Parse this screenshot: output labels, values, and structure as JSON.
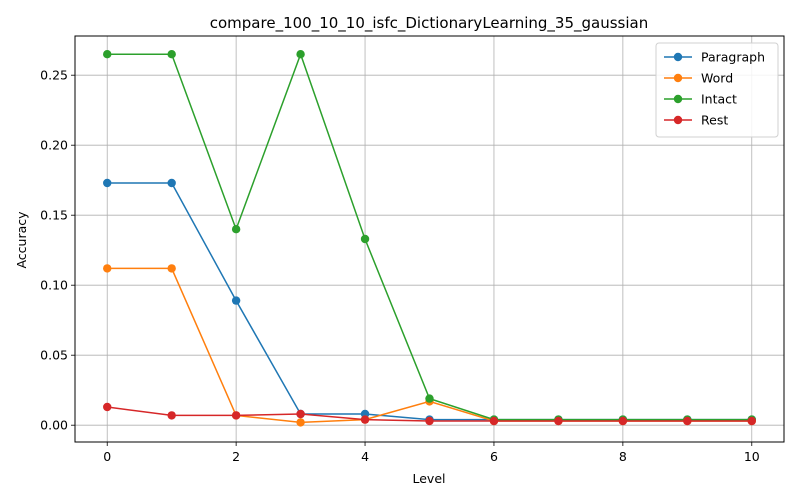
{
  "chart_data": {
    "type": "line",
    "title": "compare_100_10_10_isfc_DictionaryLearning_35_gaussian",
    "xlabel": "Level",
    "ylabel": "Accuracy",
    "xlim": [
      -0.5,
      10.5
    ],
    "ylim": [
      -0.012,
      0.278
    ],
    "xticks": [
      0,
      2,
      4,
      6,
      8,
      10
    ],
    "yticks": [
      0.0,
      0.05,
      0.1,
      0.15,
      0.2,
      0.25
    ],
    "ytick_labels": [
      "0.00",
      "0.05",
      "0.10",
      "0.15",
      "0.20",
      "0.25"
    ],
    "grid": true,
    "legend_position": "top-right",
    "x": [
      0,
      1,
      2,
      3,
      4,
      5,
      6,
      7,
      8,
      9,
      10
    ],
    "series": [
      {
        "name": "Paragraph",
        "color": "#1f77b4",
        "values": [
          0.173,
          0.173,
          0.089,
          0.008,
          0.008,
          0.004,
          0.004,
          0.004,
          0.004,
          0.004,
          0.004
        ]
      },
      {
        "name": "Word",
        "color": "#ff7f0e",
        "values": [
          0.112,
          0.112,
          0.007,
          0.002,
          0.004,
          0.017,
          0.003,
          0.003,
          0.003,
          0.003,
          0.003
        ]
      },
      {
        "name": "Intact",
        "color": "#2ca02c",
        "values": [
          0.265,
          0.265,
          0.14,
          0.265,
          0.133,
          0.019,
          0.004,
          0.004,
          0.004,
          0.004,
          0.004
        ]
      },
      {
        "name": "Rest",
        "color": "#d62728",
        "values": [
          0.013,
          0.007,
          0.007,
          0.008,
          0.004,
          0.003,
          0.003,
          0.003,
          0.003,
          0.003,
          0.003
        ]
      }
    ]
  }
}
